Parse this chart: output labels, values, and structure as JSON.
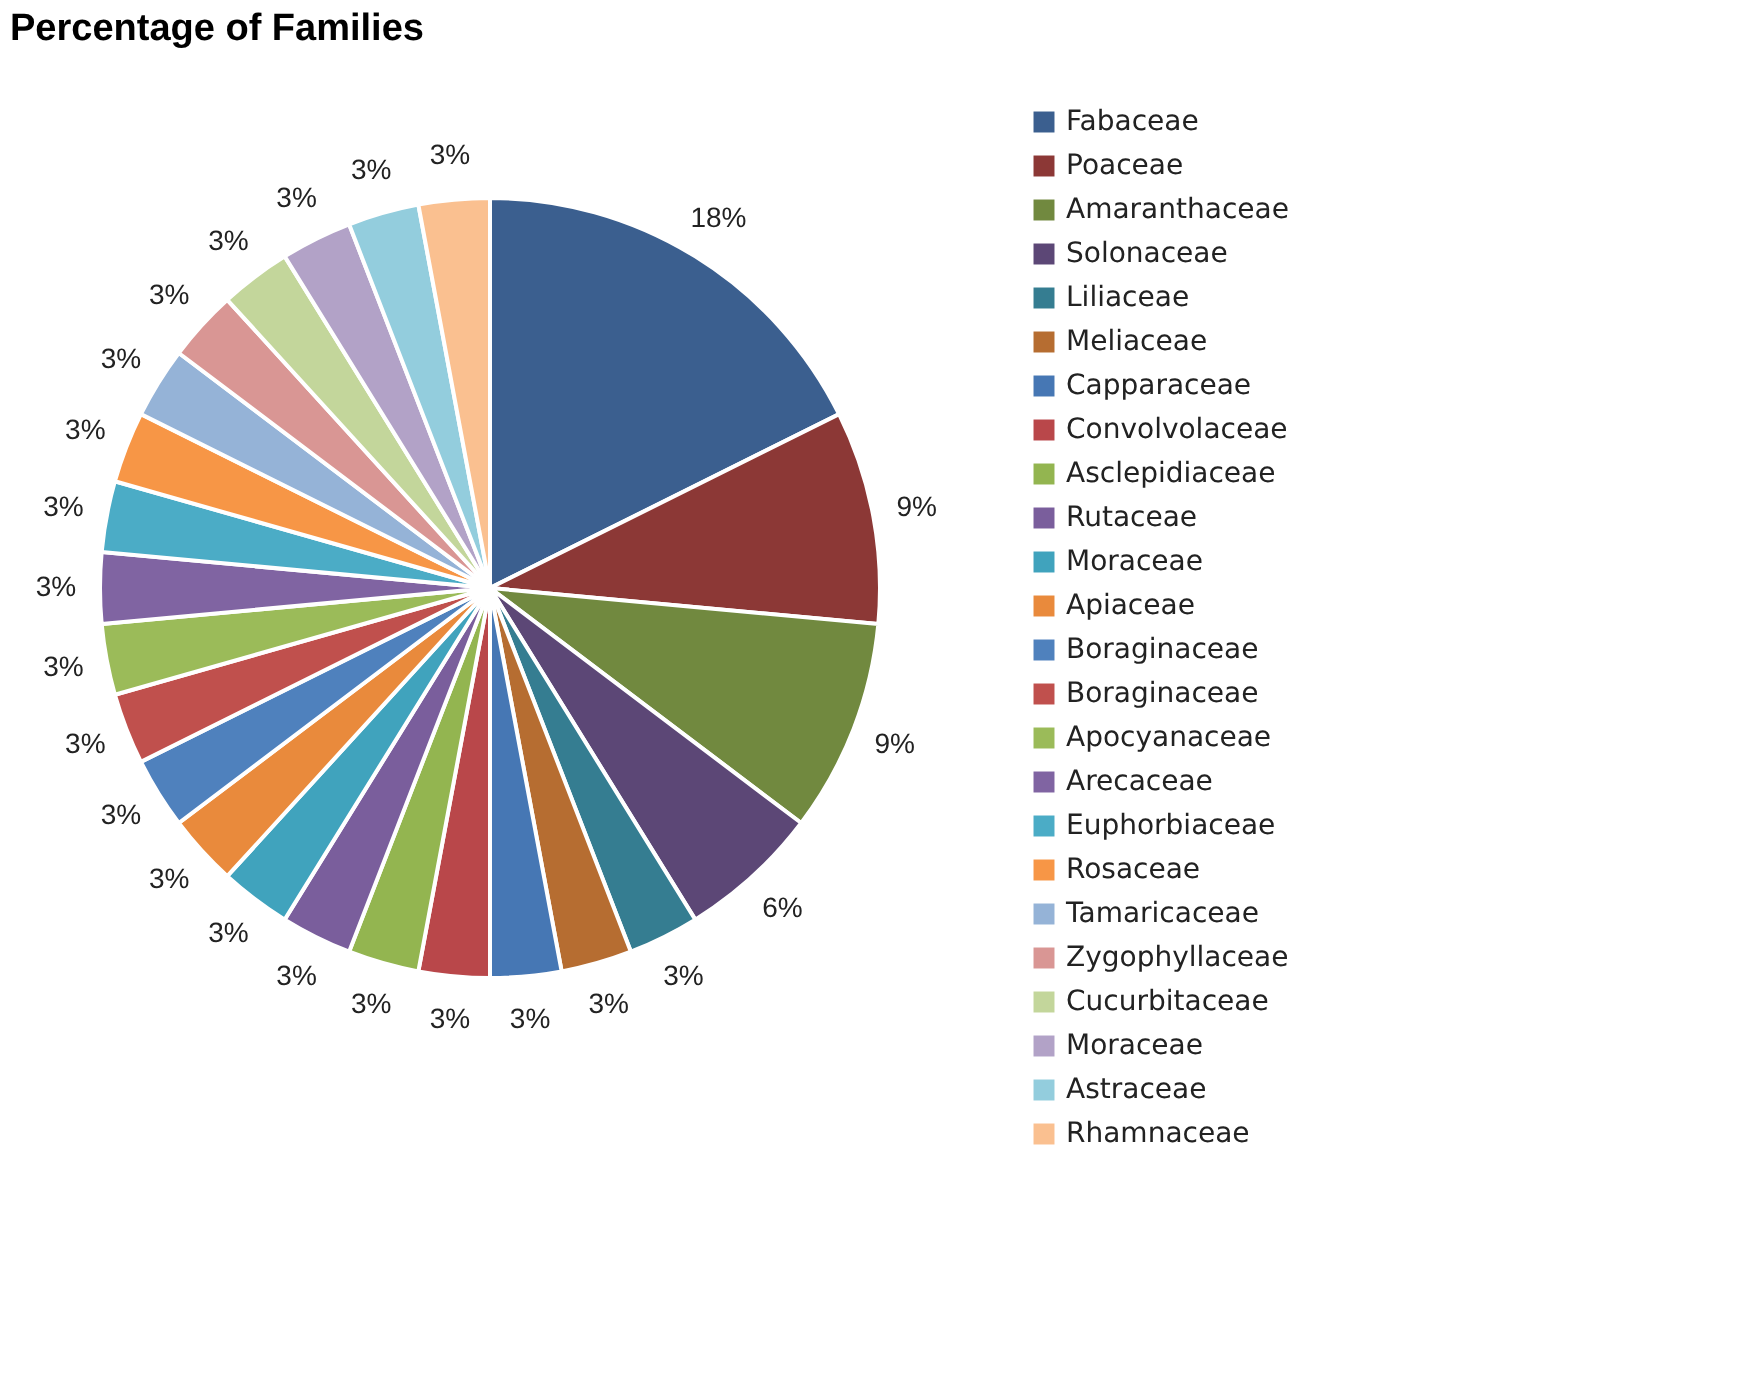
{
  "chart_data": {
    "type": "pie",
    "title": "Percentage of Families",
    "categories": [
      "Fabaceae",
      " Poaceae",
      "Amaranthaceae",
      "Solonaceae",
      "Liliaceae",
      "Meliaceae",
      " Capparaceae",
      " Convolvolaceae",
      "Asclepidiaceae",
      "Rutaceae",
      "Moraceae",
      " Apiaceae",
      " Boraginaceae",
      " Boraginaceae",
      " Apocyanaceae",
      " Arecaceae",
      " Euphorbiaceae",
      "Rosaceae",
      "Tamaricaceae",
      " Zygophyllaceae",
      "Cucurbitaceae",
      "Moraceae",
      " Astraceae",
      "Rhamnaceae"
    ],
    "values": [
      18,
      9,
      9,
      6,
      3,
      3,
      3,
      3,
      3,
      3,
      3,
      3,
      3,
      3,
      3,
      3,
      3,
      3,
      3,
      3,
      3,
      3,
      3,
      3
    ],
    "value_labels": [
      "18%",
      "9%",
      "9%",
      "6%",
      "3%",
      "3%",
      "3%",
      "3%",
      "3%",
      "3%",
      "3%",
      "3%",
      "3%",
      "3%",
      "3%",
      "3%",
      "3%",
      "3%",
      "3%",
      "3%",
      "3%",
      "3%",
      "3%",
      "3%"
    ],
    "colors": [
      "#3b5f8f",
      "#8c3836",
      "#71893f",
      "#5c4776",
      "#357d91",
      "#b66d31",
      "#4677b4",
      "#b9474a",
      "#93b550",
      "#7a5e9c",
      "#40a3bd",
      "#e98a3c",
      "#4f81bd",
      "#c0504d",
      "#9bbb59",
      "#8064a2",
      "#4bacc6",
      "#f79646",
      "#95b3d7",
      "#d99694",
      "#c3d69b",
      "#b2a2c7",
      "#93cddd",
      "#fac090"
    ],
    "legend": "right"
  }
}
